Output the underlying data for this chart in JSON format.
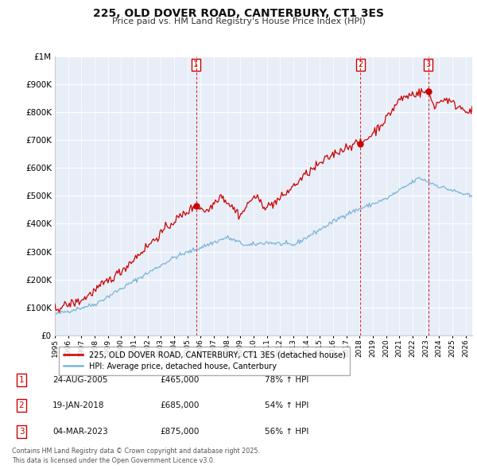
{
  "title": "225, OLD DOVER ROAD, CANTERBURY, CT1 3ES",
  "subtitle": "Price paid vs. HM Land Registry's House Price Index (HPI)",
  "background_color": "#ffffff",
  "plot_bg_color": "#e8eef8",
  "grid_color": "#ffffff",
  "red_line_color": "#cc0000",
  "blue_line_color": "#7ab4d8",
  "sale_dashed_color": "#cc0000",
  "ylim": [
    0,
    1000000
  ],
  "yticks": [
    0,
    100000,
    200000,
    300000,
    400000,
    500000,
    600000,
    700000,
    800000,
    900000,
    1000000
  ],
  "ytick_labels": [
    "£0",
    "£100K",
    "£200K",
    "£300K",
    "£400K",
    "£500K",
    "£600K",
    "£700K",
    "£800K",
    "£900K",
    "£1M"
  ],
  "xlim": [
    1995.0,
    2026.5
  ],
  "sale_events": [
    {
      "num": "1",
      "x_year": 2005.65,
      "price": 465000
    },
    {
      "num": "2",
      "x_year": 2018.05,
      "price": 685000
    },
    {
      "num": "3",
      "x_year": 2023.17,
      "price": 875000
    }
  ],
  "legend_red_label": "225, OLD DOVER ROAD, CANTERBURY, CT1 3ES (detached house)",
  "legend_blue_label": "HPI: Average price, detached house, Canterbury",
  "footer_text": "Contains HM Land Registry data © Crown copyright and database right 2025.\nThis data is licensed under the Open Government Licence v3.0.",
  "table_rows": [
    {
      "num": "1",
      "date": "24-AUG-2005",
      "price": "£465,000",
      "pct": "78% ↑ HPI"
    },
    {
      "num": "2",
      "date": "19-JAN-2018",
      "price": "£685,000",
      "pct": "54% ↑ HPI"
    },
    {
      "num": "3",
      "date": "04-MAR-2023",
      "price": "£875,000",
      "pct": "56% ↑ HPI"
    }
  ]
}
